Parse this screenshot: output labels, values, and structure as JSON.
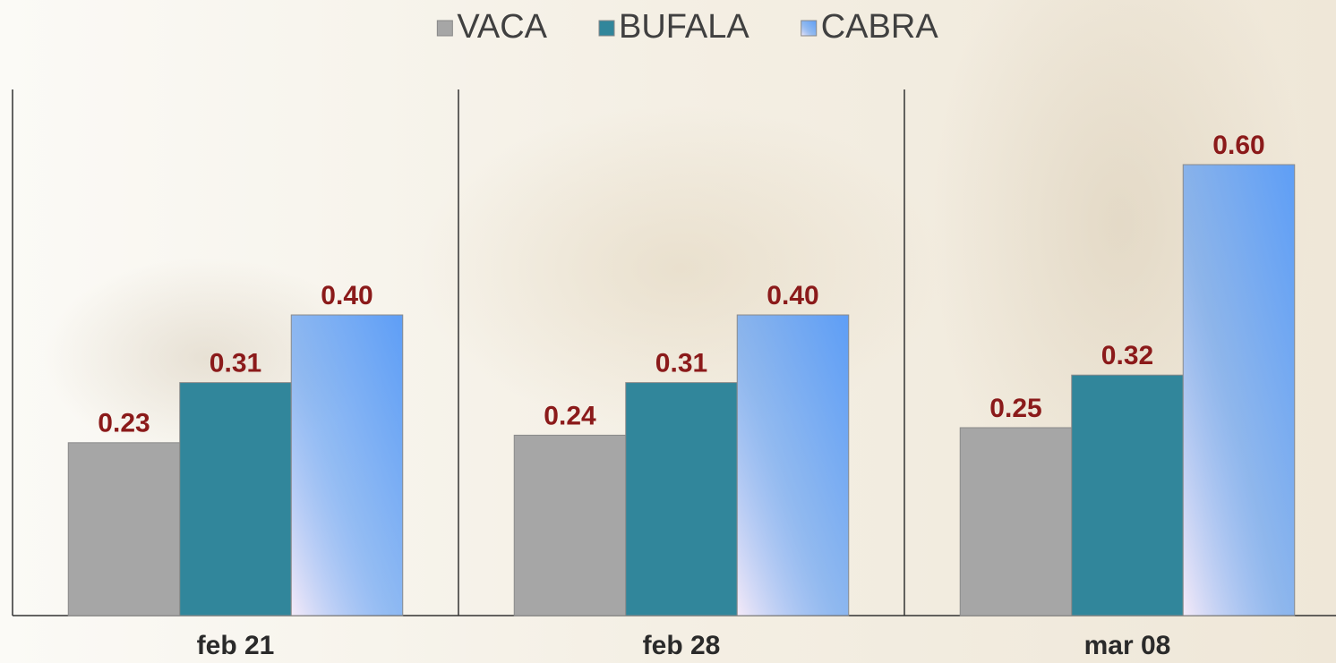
{
  "chart_data": {
    "type": "bar",
    "categories": [
      "feb 21",
      "feb 28",
      "mar 08"
    ],
    "series": [
      {
        "name": "VACA",
        "color": "#a6a6a6",
        "values": [
          0.23,
          0.24,
          0.25
        ],
        "value_labels": [
          "0.23",
          "0.24",
          "0.25"
        ]
      },
      {
        "name": "BUFALA",
        "color": "#31869b",
        "values": [
          0.31,
          0.31,
          0.32
        ],
        "value_labels": [
          "0.31",
          "0.31",
          "0.32"
        ]
      },
      {
        "name": "CABRA",
        "color": "#5e9ef6",
        "values": [
          0.4,
          0.4,
          0.6
        ],
        "value_labels": [
          "0.40",
          "0.40",
          "0.60"
        ]
      }
    ],
    "ylim": [
      0,
      0.7
    ],
    "legend": "top"
  }
}
